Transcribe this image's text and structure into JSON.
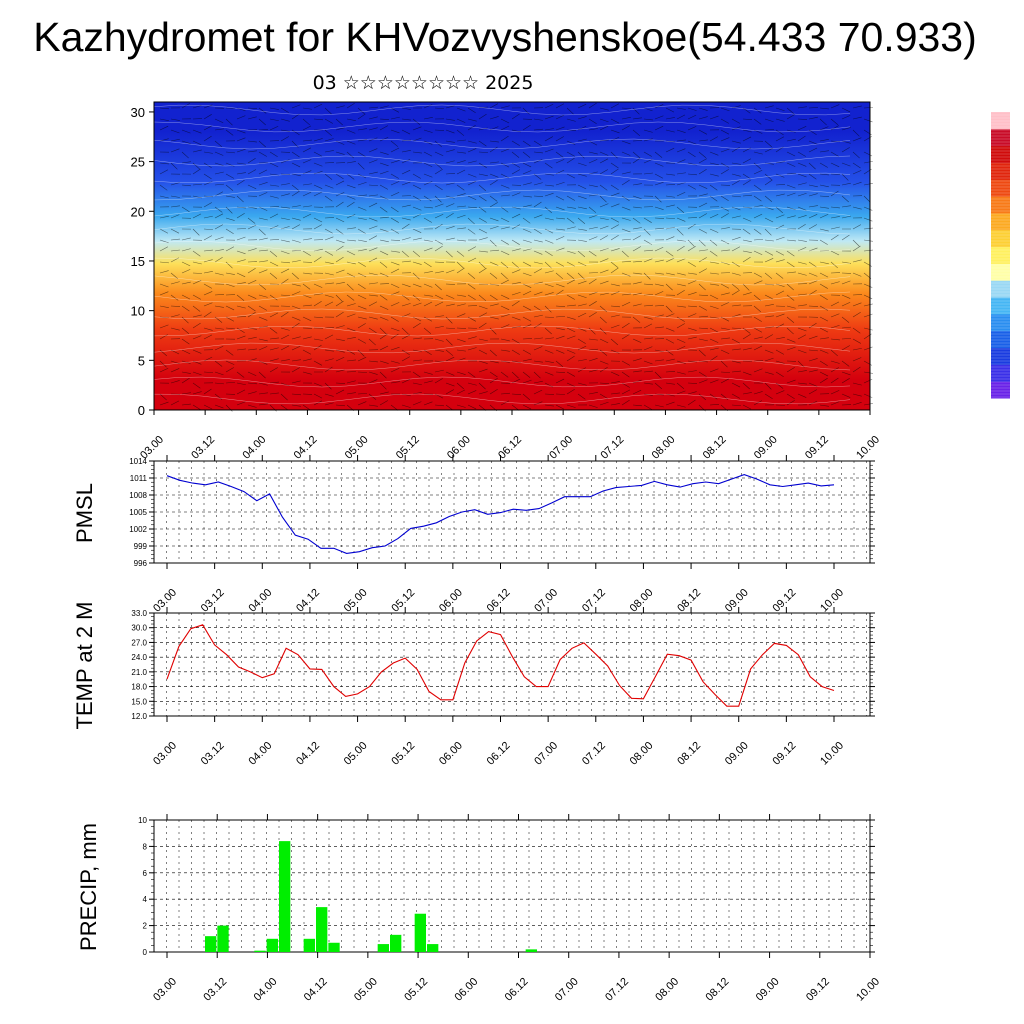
{
  "title": "Kazhydromet for KHVozvyshenskoe(54.433 70.933)",
  "date_label": "03 ☆☆☆☆☆☆☆☆ 2025",
  "chart_data": [
    {
      "type": "heatmap",
      "name": "cross-section",
      "x_ticks": [
        "03.00",
        "03.12",
        "04.00",
        "04.12",
        "05.00",
        "05.12",
        "06.00",
        "06.12",
        "07.00",
        "07.12",
        "08.00",
        "08.12",
        "09.00",
        "09.12",
        "10.00"
      ],
      "y_ticks": [
        "0",
        "5",
        "10",
        "15",
        "20",
        "25",
        "30"
      ],
      "ylim": [
        0,
        31
      ],
      "bands": [
        {
          "from": 0,
          "to": 6,
          "color": "#d4000e"
        },
        {
          "from": 6,
          "to": 10,
          "color": "#ee3a12"
        },
        {
          "from": 10,
          "to": 13.5,
          "color": "#fb8a1c"
        },
        {
          "from": 13.5,
          "to": 16,
          "color": "#fde05a"
        },
        {
          "from": 16,
          "to": 18,
          "color": "#bfe9f5"
        },
        {
          "from": 18,
          "to": 21,
          "color": "#3aa8ef"
        },
        {
          "from": 21,
          "to": 25,
          "color": "#2450e8"
        },
        {
          "from": 25,
          "to": 31,
          "color": "#1222cf"
        }
      ],
      "colorbar": [
        "#6a22e8",
        "#3a30e8",
        "#1a3ce0",
        "#1a60e8",
        "#2a8ef0",
        "#46b6f4",
        "#9ad8f4",
        "#ffffa8",
        "#fff060",
        "#fdd035",
        "#fcaa22",
        "#f87a18",
        "#ee4a12",
        "#e0260e",
        "#d00c0c",
        "#c80c28",
        "#ffc0c8"
      ]
    },
    {
      "type": "line",
      "name": "pmsl",
      "ylabel": "PMSL",
      "ylim": [
        996,
        1014
      ],
      "y_ticks": [
        "1014",
        "1011",
        "1008",
        "1005",
        "1002",
        "999",
        "996"
      ],
      "x_ticks": [
        "03.00",
        "03.12",
        "04.00",
        "04.12",
        "05.00",
        "05.12",
        "06.00",
        "06.12",
        "07.00",
        "07.12",
        "08.00",
        "08.12",
        "09.00",
        "09.12",
        "10.00"
      ],
      "color": "#0000d0",
      "values": [
        1011.4,
        1010.6,
        1010.1,
        1009.8,
        1010.3,
        1009.5,
        1008.6,
        1007.0,
        1008.2,
        1004.1,
        1000.9,
        1000.2,
        998.6,
        998.6,
        997.7,
        998.0,
        998.7,
        999.0,
        1000.3,
        1002.1,
        1002.5,
        1003.1,
        1004.2,
        1005.0,
        1005.4,
        1004.6,
        1004.9,
        1005.5,
        1005.3,
        1005.6,
        1006.6,
        1007.7,
        1007.7,
        1007.7,
        1008.7,
        1009.3,
        1009.5,
        1009.7,
        1010.4,
        1009.8,
        1009.4,
        1010.0,
        1010.3,
        1010.0,
        1010.8,
        1011.6,
        1010.8,
        1009.8,
        1009.5,
        1009.8,
        1010.1,
        1009.6,
        1009.8
      ]
    },
    {
      "type": "line",
      "name": "temp2m",
      "ylabel": "TEMP at 2 M",
      "ylim": [
        12,
        33
      ],
      "y_ticks": [
        "33.0",
        "30.0",
        "27.0",
        "24.0",
        "21.0",
        "18.0",
        "15.0",
        "12.0"
      ],
      "x_ticks": [
        "03.00",
        "03.12",
        "04.00",
        "04.12",
        "05.00",
        "05.12",
        "06.00",
        "06.12",
        "07.00",
        "07.12",
        "08.00",
        "08.12",
        "09.00",
        "09.12",
        "10.00"
      ],
      "color": "#e00000",
      "values": [
        19.5,
        26.2,
        29.8,
        30.6,
        26.5,
        24.5,
        22.0,
        21.0,
        19.8,
        20.6,
        25.8,
        24.5,
        21.6,
        21.5,
        18.0,
        16.0,
        16.5,
        18.0,
        21.0,
        22.8,
        23.8,
        21.5,
        17.0,
        15.3,
        15.3,
        22.8,
        27.3,
        29.2,
        28.6,
        24.1,
        20.0,
        18.0,
        18.0,
        23.5,
        25.8,
        26.9,
        24.6,
        22.2,
        18.2,
        15.6,
        15.5,
        20.0,
        24.6,
        24.3,
        23.4,
        19.0,
        16.4,
        14.0,
        14.0,
        21.6,
        24.5,
        26.8,
        26.4,
        24.5,
        20.0,
        18.0,
        17.2
      ]
    },
    {
      "type": "bar",
      "name": "precip",
      "ylabel": "PRECIP, mm",
      "ylim": [
        0,
        10
      ],
      "y_ticks": [
        "10",
        "8",
        "6",
        "4",
        "2",
        "0"
      ],
      "x_ticks": [
        "03.00",
        "03.12",
        "04.00",
        "04.12",
        "05.00",
        "05.12",
        "06.00",
        "06.12",
        "07.00",
        "07.12",
        "08.00",
        "08.12",
        "09.00",
        "09.12",
        "10.00"
      ],
      "color": "#00ee00",
      "values": [
        0,
        0,
        0,
        1.2,
        2.0,
        0,
        0,
        0.1,
        1.0,
        8.4,
        0,
        1.0,
        3.4,
        0.7,
        0,
        0,
        0,
        0.6,
        1.3,
        0,
        2.9,
        0.6,
        0,
        0,
        0,
        0,
        0,
        0,
        0,
        0.2,
        0,
        0,
        0,
        0,
        0,
        0,
        0,
        0,
        0,
        0,
        0,
        0,
        0,
        0,
        0,
        0,
        0,
        0,
        0,
        0,
        0,
        0,
        0,
        0,
        0,
        0,
        0
      ]
    }
  ]
}
